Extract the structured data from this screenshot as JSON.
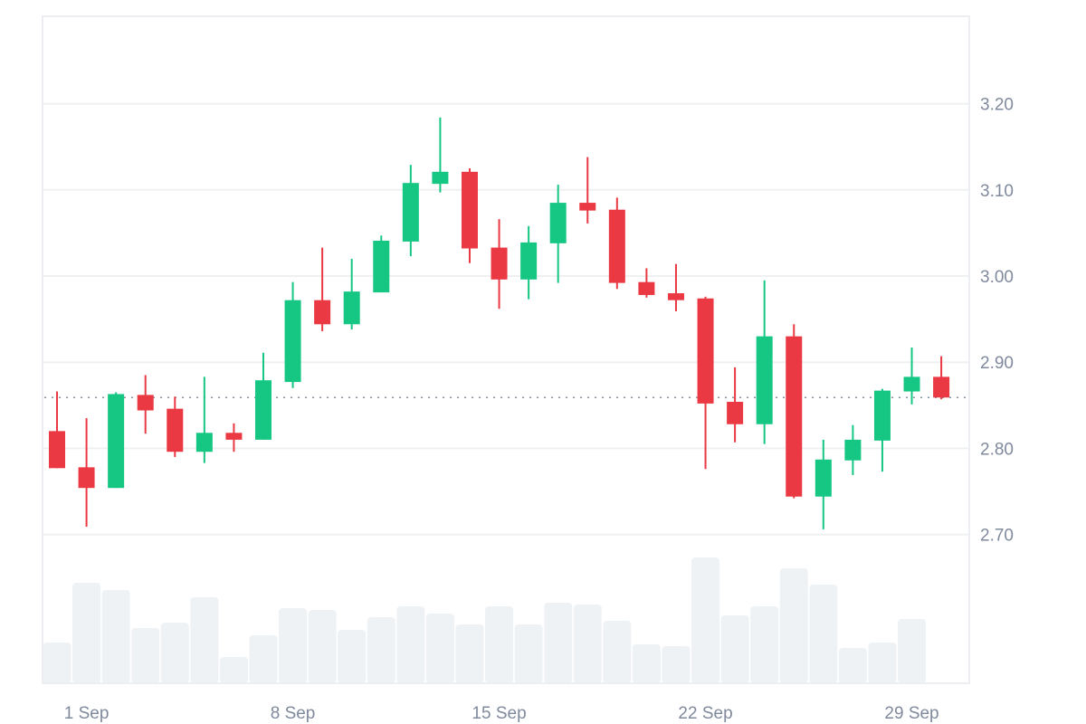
{
  "chart_data": {
    "type": "candlestick",
    "title": "",
    "xlabel": "",
    "ylabel": "",
    "ylim": [
      2.655,
      3.305
    ],
    "grid": true,
    "y_ticks": [
      "3.20",
      "3.10",
      "3.00",
      "2.90",
      "2.80",
      "2.70"
    ],
    "y_tick_values": [
      3.2,
      3.1,
      3.0,
      2.9,
      2.8,
      2.7
    ],
    "x_tick_labels": [
      {
        "label": "1 Sep",
        "index": 1
      },
      {
        "label": "8 Sep",
        "index": 8
      },
      {
        "label": "15 Sep",
        "index": 15
      },
      {
        "label": "22 Sep",
        "index": 22
      },
      {
        "label": "29 Sep",
        "index": 29
      }
    ],
    "last_price": 2.859,
    "colors": {
      "up": "#16c784",
      "down": "#ea3943",
      "volume": "#eff2f5",
      "grid": "#eff0f2",
      "axis_text": "#808a9d",
      "last_price_line": "#8a919e"
    },
    "dates": [
      "31 Aug",
      "1 Sep",
      "2 Sep",
      "3 Sep",
      "4 Sep",
      "5 Sep",
      "6 Sep",
      "7 Sep",
      "8 Sep",
      "9 Sep",
      "10 Sep",
      "11 Sep",
      "12 Sep",
      "13 Sep",
      "14 Sep",
      "15 Sep",
      "16 Sep",
      "17 Sep",
      "18 Sep",
      "19 Sep",
      "20 Sep",
      "21 Sep",
      "22 Sep",
      "23 Sep",
      "24 Sep",
      "25 Sep",
      "26 Sep",
      "27 Sep",
      "28 Sep",
      "29 Sep",
      "30 Sep"
    ],
    "open": [
      2.82,
      2.778,
      2.754,
      2.862,
      2.846,
      2.796,
      2.818,
      2.81,
      2.877,
      2.972,
      2.944,
      2.981,
      3.04,
      3.107,
      3.121,
      3.033,
      2.996,
      3.038,
      3.085,
      3.077,
      2.993,
      2.98,
      2.974,
      2.854,
      2.828,
      2.93,
      2.744,
      2.786,
      2.809,
      2.866,
      2.883
    ],
    "high": [
      2.866,
      2.835,
      2.865,
      2.885,
      2.86,
      2.883,
      2.829,
      2.911,
      2.993,
      3.033,
      3.02,
      3.047,
      3.129,
      3.184,
      3.125,
      3.066,
      3.058,
      3.106,
      3.138,
      3.091,
      3.009,
      3.014,
      2.976,
      2.894,
      2.995,
      2.944,
      2.81,
      2.827,
      2.869,
      2.917,
      2.907
    ],
    "low": [
      2.777,
      2.709,
      2.754,
      2.817,
      2.79,
      2.783,
      2.796,
      2.81,
      2.87,
      2.936,
      2.938,
      2.981,
      3.023,
      3.097,
      3.015,
      2.962,
      2.973,
      2.992,
      3.061,
      2.985,
      2.975,
      2.959,
      2.776,
      2.807,
      2.805,
      2.742,
      2.706,
      2.769,
      2.773,
      2.851,
      2.857
    ],
    "close": [
      2.777,
      2.754,
      2.863,
      2.844,
      2.796,
      2.818,
      2.81,
      2.879,
      2.972,
      2.944,
      2.982,
      3.041,
      3.108,
      3.121,
      3.032,
      2.996,
      3.039,
      3.085,
      3.076,
      2.992,
      2.978,
      2.972,
      2.852,
      2.828,
      2.93,
      2.744,
      2.787,
      2.81,
      2.867,
      2.883,
      2.859
    ],
    "volume_relative": [
      45,
      111,
      103,
      61,
      67,
      95,
      29,
      53,
      83,
      81,
      59,
      73,
      85,
      77,
      65,
      85,
      65,
      89,
      87,
      69,
      43,
      41,
      139,
      75,
      85,
      127,
      109,
      39,
      45,
      71,
      0
    ]
  }
}
